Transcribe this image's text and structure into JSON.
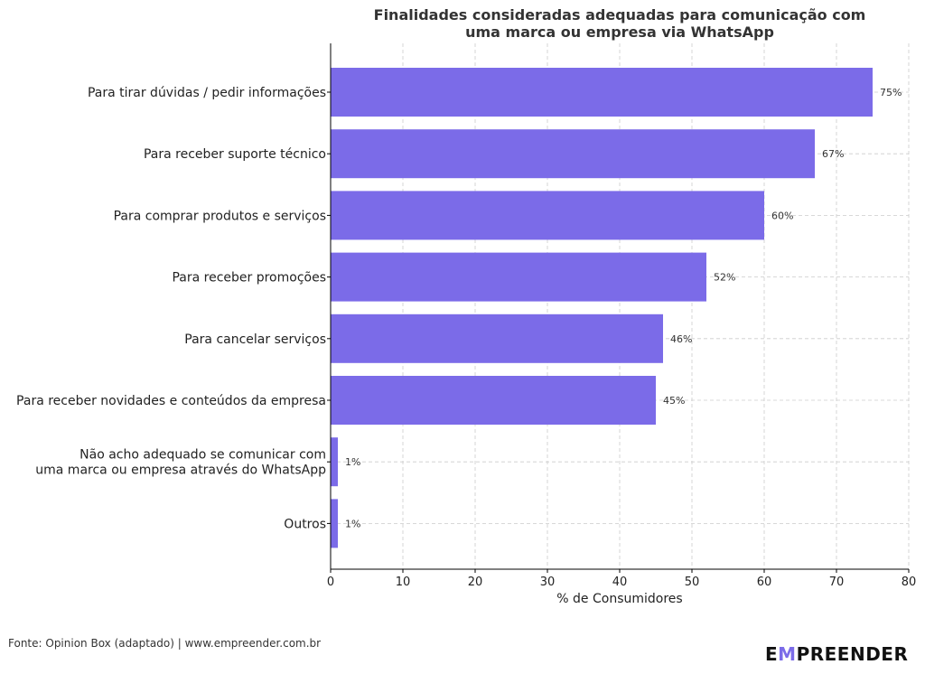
{
  "chart_data": {
    "type": "bar",
    "orientation": "horizontal",
    "title_lines": [
      "Finalidades consideradas adequadas para comunicação com",
      "uma marca ou empresa via WhatsApp"
    ],
    "xlabel": "% de Consumidores",
    "ylabel": "",
    "xlim": [
      0,
      80
    ],
    "xticks": [
      0,
      10,
      20,
      30,
      40,
      50,
      60,
      70,
      80
    ],
    "grid": true,
    "categories": [
      [
        "Para tirar dúvidas / pedir informações"
      ],
      [
        "Para receber suporte técnico"
      ],
      [
        "Para comprar produtos e serviços"
      ],
      [
        "Para receber promoções"
      ],
      [
        "Para cancelar serviços"
      ],
      [
        "Para receber novidades e conteúdos da empresa"
      ],
      [
        "Não acho adequado se comunicar com",
        "uma marca ou empresa através do WhatsApp"
      ],
      [
        "Outros"
      ]
    ],
    "values": [
      75,
      67,
      60,
      52,
      46,
      45,
      1,
      1
    ],
    "value_labels": [
      "75%",
      "67%",
      "60%",
      "52%",
      "46%",
      "45%",
      "1%",
      "1%"
    ],
    "bar_color": "#7B6BE8"
  },
  "footer": {
    "source": "Fonte: Opinion Box (adaptado) | www.empreender.com.br",
    "logo_text": "EMPREENDER",
    "logo_accent_color": "#7B6BE8"
  }
}
